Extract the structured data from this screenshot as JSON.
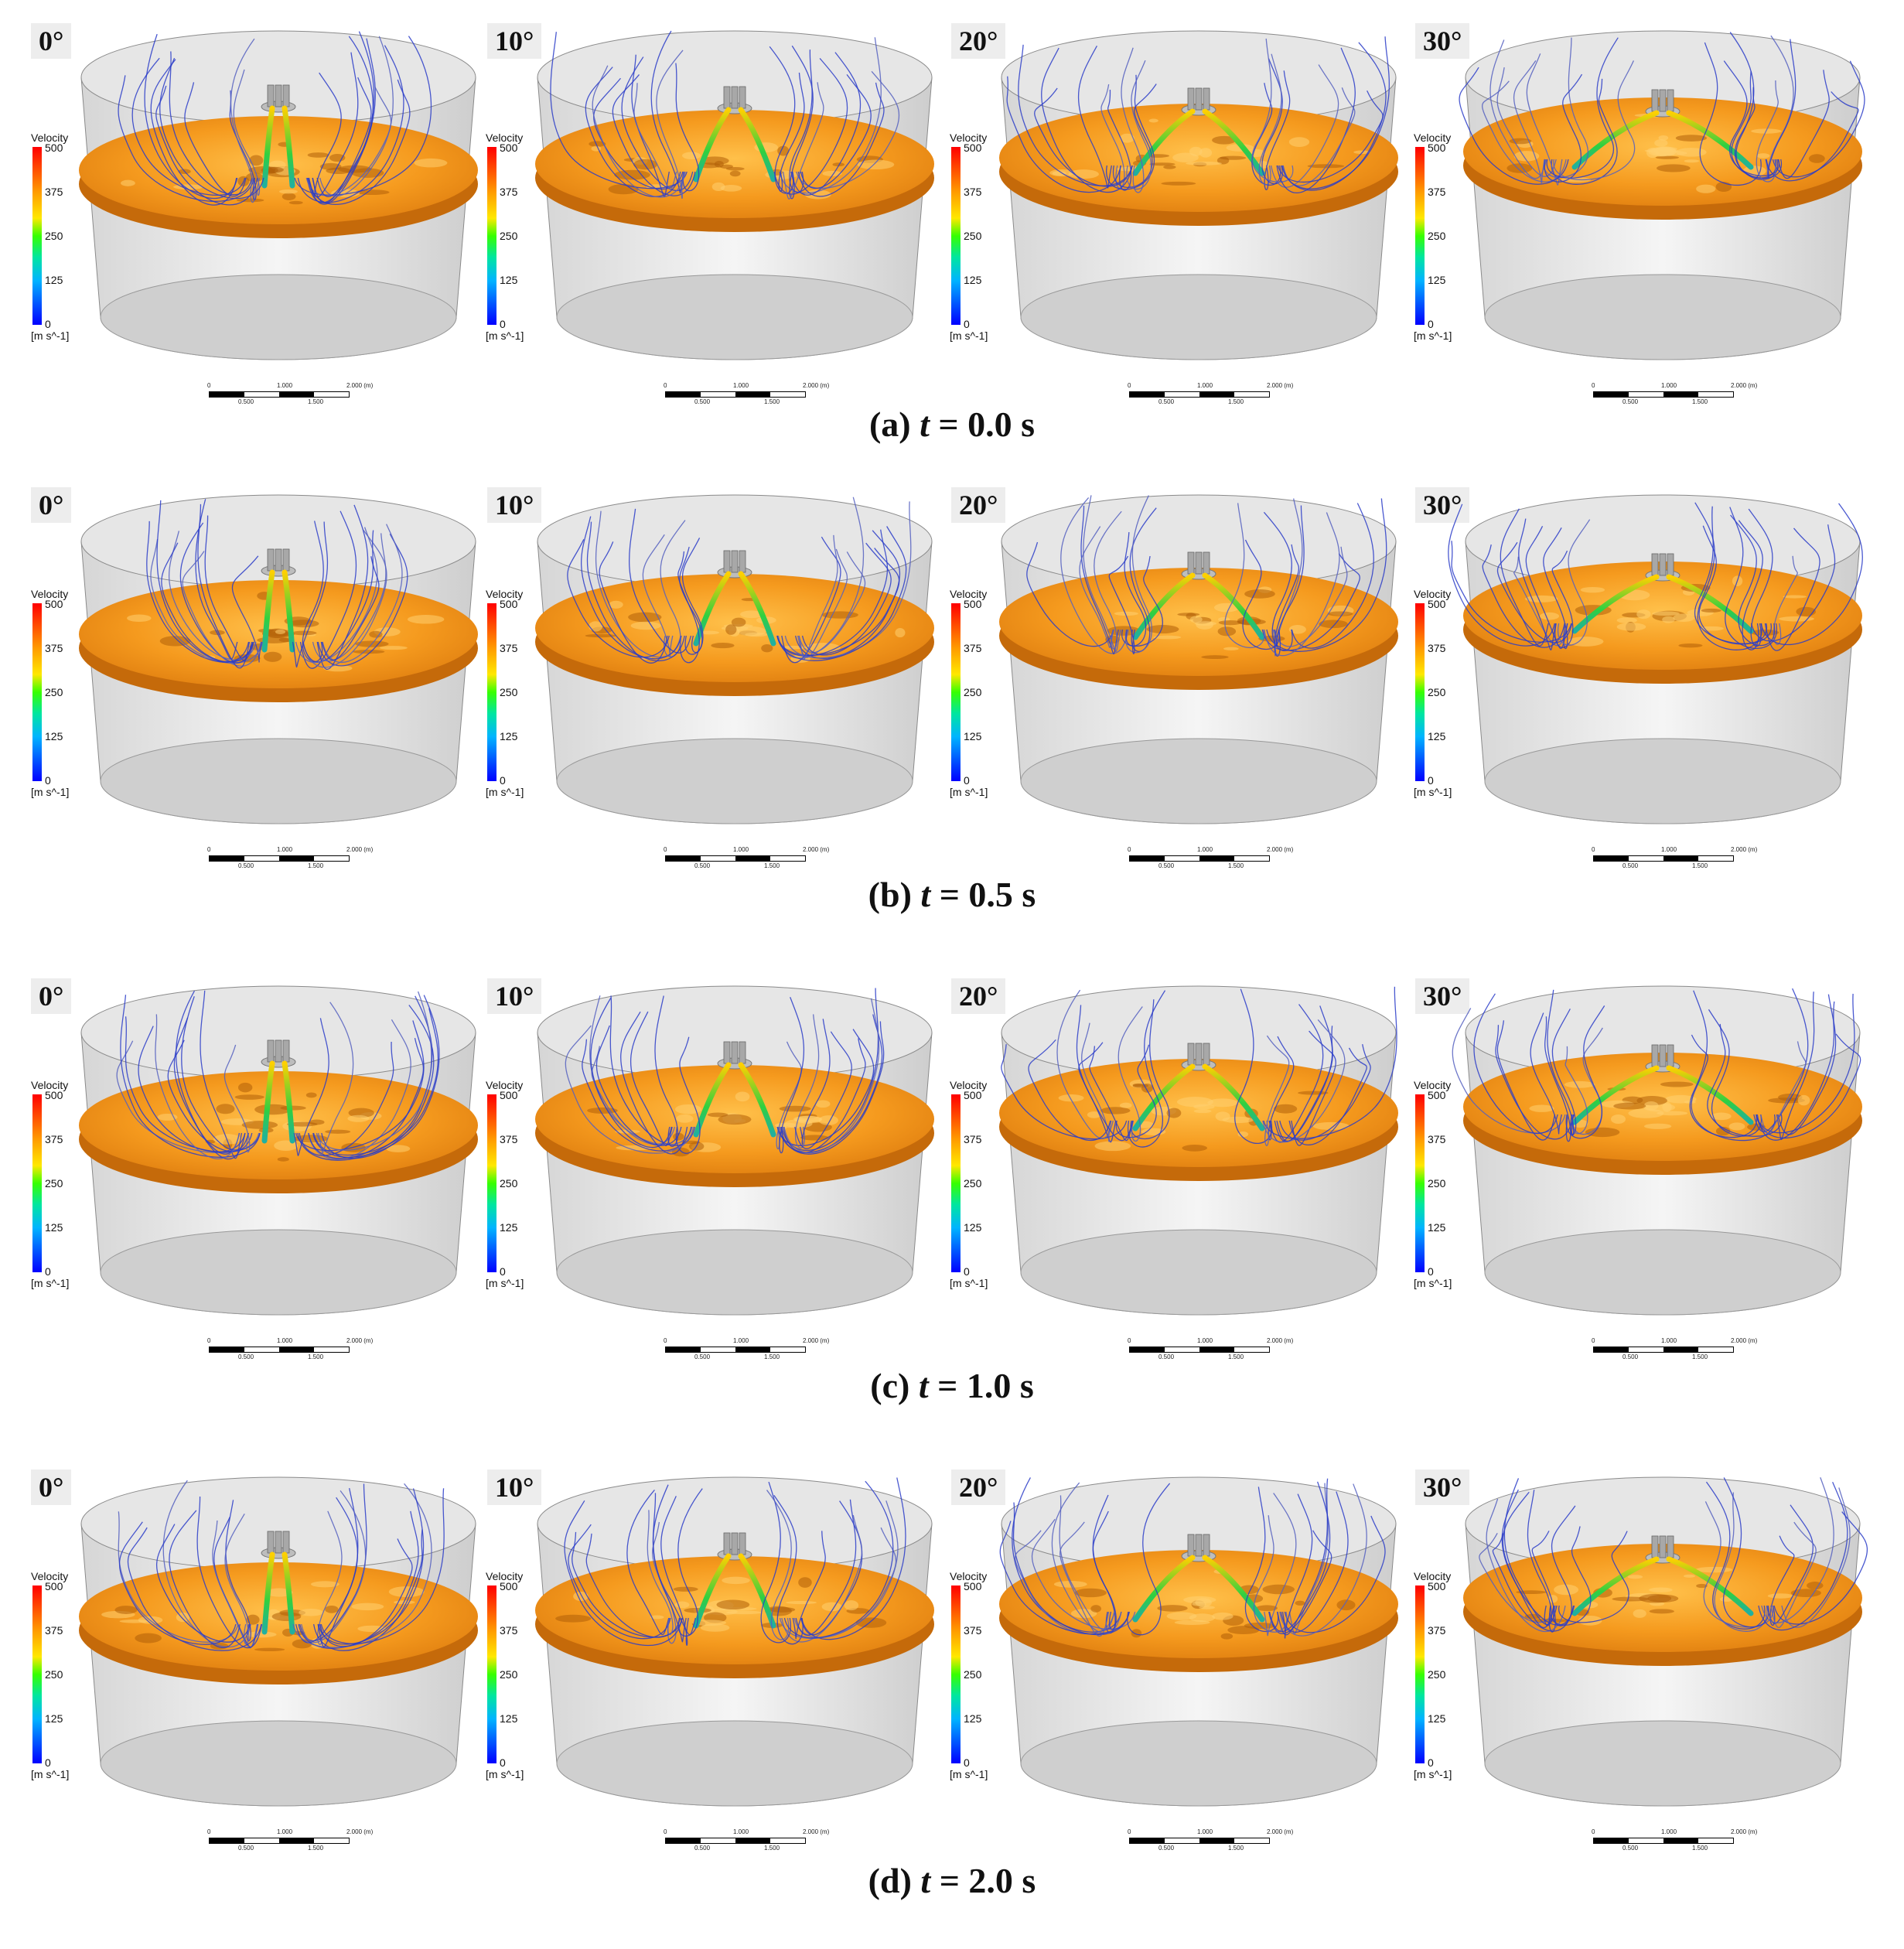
{
  "figure": {
    "rows": [
      {
        "caption_prefix": "(a)",
        "caption_var": "t",
        "caption_value": "= 0.0 s"
      },
      {
        "caption_prefix": "(b)",
        "caption_var": "t",
        "caption_value": "= 0.5 s"
      },
      {
        "caption_prefix": "(c)",
        "caption_var": "t",
        "caption_value": "= 1.0 s"
      },
      {
        "caption_prefix": "(d)",
        "caption_var": "t",
        "caption_value": "= 2.0 s"
      }
    ],
    "angles": [
      "0°",
      "10°",
      "20°",
      "30°"
    ],
    "legend": {
      "title": "Velocity",
      "ticks": [
        "500",
        "375",
        "250",
        "125",
        "0"
      ],
      "unit": "[m s^-1]"
    },
    "scale": {
      "top_labels": [
        "0",
        "1.000",
        "2.000 (m)"
      ],
      "bottom_labels": [
        "0.500",
        "1.500"
      ]
    },
    "colors": {
      "slag_surface": "#f59a1e",
      "vessel_wall": "#d9d9d9",
      "streamline_low": "#2a3cc8",
      "streamline_mid": "#30d040",
      "streamline_high": "#ffd000"
    }
  }
}
